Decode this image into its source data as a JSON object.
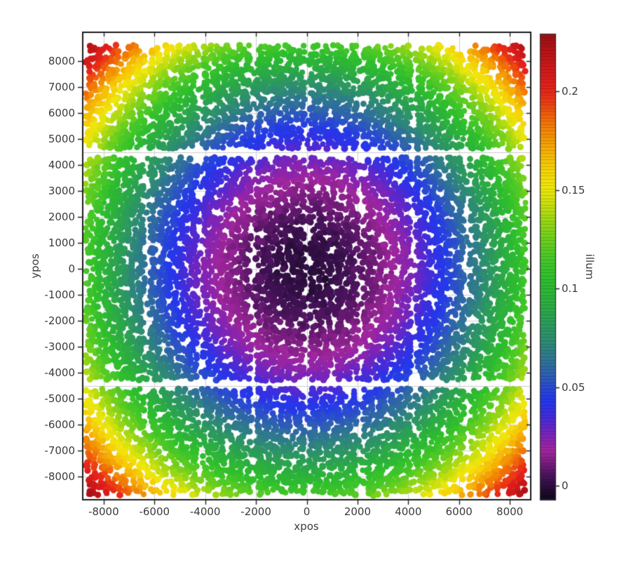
{
  "figure": {
    "background": "#ffffff"
  },
  "chart_data": {
    "type": "scatter",
    "title": "",
    "xlabel": "xpos",
    "ylabel": "ypos",
    "colorbar_label": "illum",
    "xlim": [
      -8825,
      8825
    ],
    "ylim": [
      -8890,
      9110
    ],
    "x_ticks": [
      -8000,
      -6000,
      -4000,
      -2000,
      0,
      2000,
      4000,
      6000,
      8000
    ],
    "x_tick_labels": [
      "-8000",
      "-6000",
      "-4000",
      "-2000",
      "0",
      "2000",
      "4000",
      "6000",
      "8000"
    ],
    "y_ticks": [
      -8000,
      -7000,
      -6000,
      -5000,
      -4000,
      -3000,
      -2000,
      -1000,
      0,
      1000,
      2000,
      3000,
      4000,
      5000,
      6000,
      7000,
      8000
    ],
    "y_tick_labels": [
      "-8000",
      "-7000",
      "-6000",
      "-5000",
      "-4000",
      "-3000",
      "-2000",
      "-1000",
      "0",
      "1000",
      "2000",
      "3000",
      "4000",
      "5000",
      "6000",
      "7000",
      "8000"
    ],
    "grid": true,
    "legend": null,
    "colorbar": {
      "range": [
        -0.0071,
        0.2292
      ],
      "ticks": [
        0,
        0.05,
        0.1,
        0.15,
        0.2
      ],
      "tick_labels": [
        "0",
        "0.05",
        "0.1",
        "0.15",
        "0.2"
      ],
      "position": "right"
    },
    "data_extent": {
      "x": [
        -8600,
        8600
      ],
      "y": [
        -8600,
        8600
      ]
    },
    "n_points_estimate": 11500,
    "value_model": {
      "description": "illum rises radially from ~0 at plot center to ~0.225 at the field corners",
      "formula": "v = k*(x^2+y^2)",
      "k": 1.52e-09,
      "noise": 0.0024,
      "value_at_center": 0.0,
      "value_at_corner": 0.225
    },
    "gaps": {
      "band_gap_abs_y": [
        4290,
        4620
      ],
      "vertical_lines": [
        -6300,
        -4200,
        -2100,
        0,
        2100,
        4200,
        6300
      ],
      "vertical_halfwidth": 95,
      "vertical_keep": 0.22,
      "horizontal_lines": [
        -6300,
        -2100,
        0,
        2100,
        6300
      ],
      "horizontal_halfwidth": 60,
      "horizontal_keep": 0.55
    },
    "points": {
      "grid_step": 150,
      "jitter": 118,
      "seed": 1234567,
      "keep_base": 0.85,
      "radius_px": [
        3.9,
        5.2
      ]
    },
    "colormap_stops": [
      [
        -0.0071,
        "#120720"
      ],
      [
        -0.002,
        "#220c31"
      ],
      [
        0.003,
        "#3c1150"
      ],
      [
        0.008,
        "#5c1769"
      ],
      [
        0.013,
        "#821f86"
      ],
      [
        0.018,
        "#a0269d"
      ],
      [
        0.023,
        "#8a24ad"
      ],
      [
        0.028,
        "#6f25c0"
      ],
      [
        0.033,
        "#4f2ad2"
      ],
      [
        0.038,
        "#3530e2"
      ],
      [
        0.044,
        "#2438ea"
      ],
      [
        0.05,
        "#2a4bd0"
      ],
      [
        0.058,
        "#2e64ab"
      ],
      [
        0.066,
        "#2f7a8c"
      ],
      [
        0.075,
        "#2d8f6e"
      ],
      [
        0.085,
        "#2ba152"
      ],
      [
        0.095,
        "#2cb13c"
      ],
      [
        0.105,
        "#2ebe2d"
      ],
      [
        0.115,
        "#45c728"
      ],
      [
        0.125,
        "#6ccf1e"
      ],
      [
        0.135,
        "#9cd714"
      ],
      [
        0.144,
        "#cfe00e"
      ],
      [
        0.152,
        "#f0e70c"
      ],
      [
        0.161,
        "#f5d008"
      ],
      [
        0.169,
        "#f5b306"
      ],
      [
        0.177,
        "#f39305"
      ],
      [
        0.185,
        "#f07008"
      ],
      [
        0.193,
        "#ec4310"
      ],
      [
        0.201,
        "#e5231b"
      ],
      [
        0.21,
        "#d41a1a"
      ],
      [
        0.22,
        "#b91316"
      ],
      [
        0.229,
        "#9b1014"
      ]
    ],
    "style": {
      "background": "#ffffff",
      "grid_color": "#cdcdcd",
      "frame_color": "#1c1c1c",
      "tick_color": "#222222",
      "text_color": "#3b3b3b",
      "extra_grid_y": [
        -4500,
        4500
      ]
    }
  }
}
